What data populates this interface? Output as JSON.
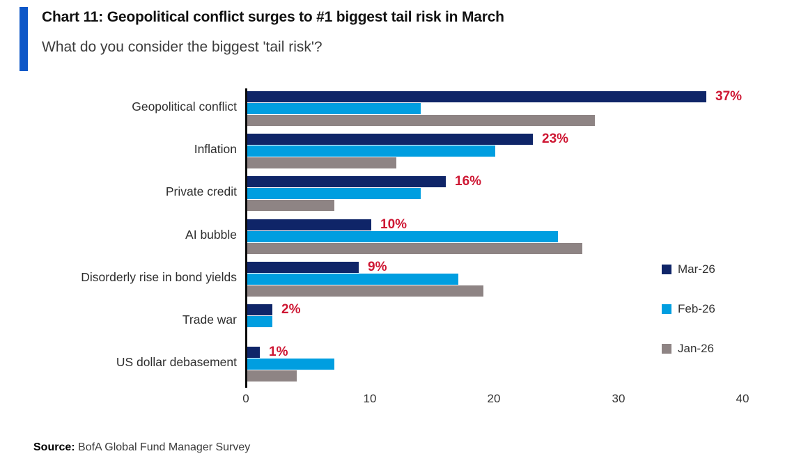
{
  "header": {
    "title": "Chart 11: Geopolitical conflict surges to #1 biggest tail risk in March",
    "subtitle": "What do you consider the biggest 'tail risk'?",
    "accent_color": "#0d57c8"
  },
  "chart_data": {
    "type": "bar",
    "orientation": "horizontal",
    "title": "Chart 11: Geopolitical conflict surges to #1 biggest tail risk in March",
    "subtitle": "What do you consider the biggest 'tail risk'?",
    "categories": [
      "Geopolitical conflict",
      "Inflation",
      "Private credit",
      "AI bubble",
      "Disorderly rise in bond yields",
      "Trade war",
      "US dollar debasement"
    ],
    "series": [
      {
        "name": "Mar-26",
        "color": "#0f2568",
        "values": [
          37,
          23,
          16,
          10,
          9,
          2,
          1
        ]
      },
      {
        "name": "Feb-26",
        "color": "#009ee0",
        "values": [
          14,
          20,
          14,
          25,
          17,
          2,
          7
        ]
      },
      {
        "name": "Jan-26",
        "color": "#8e8484",
        "values": [
          28,
          12,
          7,
          27,
          19,
          0,
          4
        ]
      }
    ],
    "data_labels": [
      "37%",
      "23%",
      "16%",
      "10%",
      "9%",
      "2%",
      "1%"
    ],
    "data_label_color": "#ce1733",
    "data_label_series": "Mar-26",
    "xlim": [
      0,
      40
    ],
    "x_ticks": [
      0,
      10,
      20,
      30,
      40
    ],
    "grid": false,
    "legend_position": "right"
  },
  "footer": {
    "source_label": "Source:",
    "source_text": "BofA Global Fund Manager Survey"
  }
}
